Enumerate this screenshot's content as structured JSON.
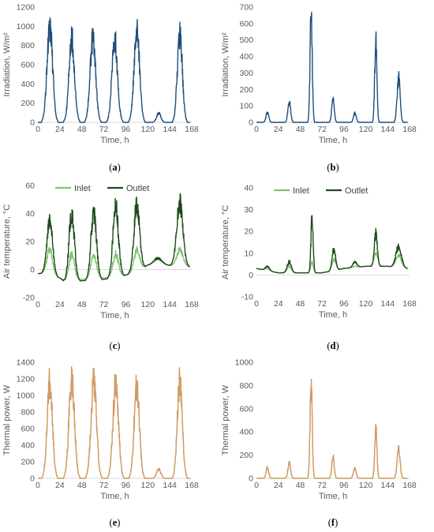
{
  "chart_data": [
    {
      "id": "a",
      "caption_letter": "a",
      "type": "line",
      "xlabel": "Time, h",
      "ylabel": "Irradiation, W/m²",
      "xlim": [
        0,
        168
      ],
      "ylim": [
        0,
        1200
      ],
      "xticks": [
        0,
        24,
        48,
        72,
        96,
        120,
        144,
        168
      ],
      "yticks": [
        0,
        200,
        400,
        600,
        800,
        1000,
        1200
      ],
      "grid": false,
      "legend": null,
      "series": [
        {
          "color": "#1f4e79",
          "peaks": [
            [
              13,
              1030,
              4
            ],
            [
              37,
              870,
              4
            ],
            [
              60,
              880,
              4
            ],
            [
              84,
              870,
              4
            ],
            [
              108,
              960,
              4
            ],
            [
              132,
              100,
              3
            ],
            [
              155,
              930,
              3.6
            ]
          ]
        }
      ]
    },
    {
      "id": "b",
      "caption_letter": "b",
      "type": "line",
      "xlabel": "Time, h",
      "ylabel": "Irradiation, W/m²",
      "xlim": [
        0,
        168
      ],
      "ylim": [
        0,
        700
      ],
      "xticks": [
        0,
        24,
        48,
        72,
        96,
        120,
        144,
        168
      ],
      "yticks": [
        0,
        100,
        200,
        300,
        400,
        500,
        600,
        700
      ],
      "grid": false,
      "legend": null,
      "series": [
        {
          "color": "#1f4e79",
          "peaks": [
            [
              12,
              60,
              2
            ],
            [
              36,
              125,
              2
            ],
            [
              60,
              650,
              1.6
            ],
            [
              84,
              150,
              1.8
            ],
            [
              108,
              55,
              2
            ],
            [
              131,
              495,
              1.6
            ],
            [
              156,
              270,
              2.2
            ]
          ]
        }
      ]
    },
    {
      "id": "c",
      "caption_letter": "c",
      "type": "line",
      "xlabel": "Time, h",
      "ylabel": "Air temperature, °C",
      "xlim": [
        0,
        168
      ],
      "ylim": [
        -20,
        60
      ],
      "xticks": [
        0,
        24,
        48,
        72,
        96,
        120,
        144,
        168
      ],
      "yticks": [
        -20,
        0,
        20,
        40,
        60
      ],
      "grid": false,
      "legend": "top",
      "series": [
        {
          "name": "Inlet",
          "color": "#7dc36e",
          "peaks": [
            [
              13,
              14,
              4
            ],
            [
              37,
              11,
              4
            ],
            [
              61,
              11,
              4
            ],
            [
              85,
              11,
              4
            ],
            [
              108,
              14,
              4
            ],
            [
              131,
              8,
              6
            ],
            [
              155,
              14,
              4.5
            ]
          ],
          "base": [
            [
              0,
              -3
            ],
            [
              10,
              -2
            ],
            [
              24,
              -6
            ],
            [
              30,
              -8
            ],
            [
              48,
              -7
            ],
            [
              72,
              -6
            ],
            [
              96,
              -4
            ],
            [
              120,
              3
            ],
            [
              144,
              3
            ],
            [
              166,
              2
            ]
          ]
        },
        {
          "name": "Outlet",
          "color": "#1e4a1a",
          "peaks": [
            [
              13,
              36,
              4
            ],
            [
              37,
              40,
              4
            ],
            [
              61,
              41,
              4
            ],
            [
              85,
              44,
              4
            ],
            [
              108,
              47,
              4
            ],
            [
              131,
              8,
              6
            ],
            [
              155,
              47,
              4.5
            ]
          ],
          "base": [
            [
              0,
              -3
            ],
            [
              10,
              -2
            ],
            [
              24,
              -6
            ],
            [
              30,
              -9
            ],
            [
              48,
              -8
            ],
            [
              72,
              -7
            ],
            [
              96,
              -4
            ],
            [
              120,
              3
            ],
            [
              144,
              3
            ],
            [
              166,
              2
            ]
          ]
        }
      ]
    },
    {
      "id": "d",
      "caption_letter": "d",
      "type": "line",
      "xlabel": "Time, h",
      "ylabel": "Air temperature, °C",
      "xlim": [
        0,
        168
      ],
      "ylim": [
        -10,
        40
      ],
      "xticks": [
        0,
        24,
        48,
        72,
        96,
        120,
        144,
        168
      ],
      "yticks": [
        -10,
        0,
        10,
        20,
        30,
        40
      ],
      "grid": false,
      "legend": "top",
      "series": [
        {
          "name": "Inlet",
          "color": "#7dc36e",
          "peaks": [
            [
              12,
              3,
              3
            ],
            [
              36,
              4,
              3
            ],
            [
              61,
              6,
              2
            ],
            [
              85,
              7,
              3
            ],
            [
              108,
              4,
              3
            ],
            [
              131,
              10,
              3
            ],
            [
              156,
              9,
              4
            ]
          ],
          "base": [
            [
              0,
              3
            ],
            [
              24,
              1
            ],
            [
              48,
              1
            ],
            [
              72,
              1
            ],
            [
              96,
              3
            ],
            [
              120,
              4
            ],
            [
              144,
              4
            ],
            [
              166,
              3
            ]
          ]
        },
        {
          "name": "Outlet",
          "color": "#1e4a1a",
          "peaks": [
            [
              12,
              4,
              3
            ],
            [
              36,
              6,
              3
            ],
            [
              61,
              26,
              1.6
            ],
            [
              85,
              12,
              2.5
            ],
            [
              108,
              6,
              3
            ],
            [
              131,
              19,
              2.2
            ],
            [
              156,
              13,
              4
            ]
          ],
          "base": [
            [
              0,
              3
            ],
            [
              24,
              1
            ],
            [
              48,
              1
            ],
            [
              72,
              1
            ],
            [
              96,
              3
            ],
            [
              120,
              4
            ],
            [
              144,
              4
            ],
            [
              166,
              3
            ]
          ]
        }
      ]
    },
    {
      "id": "e",
      "caption_letter": "e",
      "type": "line",
      "xlabel": "Time, h",
      "ylabel": "Thermal power, W",
      "xlim": [
        0,
        168
      ],
      "ylim": [
        0,
        1400
      ],
      "xticks": [
        0,
        24,
        48,
        72,
        96,
        120,
        144,
        168
      ],
      "yticks": [
        0,
        200,
        400,
        600,
        800,
        1000,
        1200,
        1400
      ],
      "grid": false,
      "legend": null,
      "series": [
        {
          "color": "#c09038",
          "peaks": [
            [
              13,
              1160,
              3.8
            ],
            [
              37,
              1200,
              4
            ],
            [
              61,
              1180,
              4
            ],
            [
              85,
              1160,
              4
            ],
            [
              108,
              1120,
              3.8
            ],
            [
              132,
              110,
              3
            ],
            [
              155,
              1180,
              3.6
            ]
          ]
        }
      ]
    },
    {
      "id": "f",
      "caption_letter": "f",
      "type": "line",
      "xlabel": "Time, h",
      "ylabel": "Thermal power, W",
      "xlim": [
        0,
        168
      ],
      "ylim": [
        0,
        1000
      ],
      "xticks": [
        0,
        24,
        48,
        72,
        96,
        120,
        144,
        168
      ],
      "yticks": [
        0,
        200,
        400,
        600,
        800,
        1000
      ],
      "grid": false,
      "legend": null,
      "series": [
        {
          "color": "#c09038",
          "peaks": [
            [
              12,
              90,
              2
            ],
            [
              36,
              130,
              2
            ],
            [
              60,
              800,
              1.6
            ],
            [
              84,
              190,
              1.8
            ],
            [
              108,
              90,
              2
            ],
            [
              131,
              440,
              1.6
            ],
            [
              156,
              250,
              2.2
            ]
          ]
        }
      ]
    }
  ]
}
